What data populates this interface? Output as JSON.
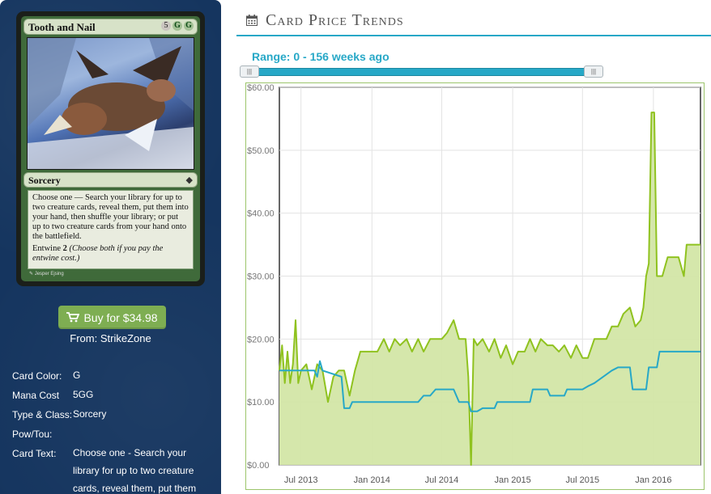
{
  "card": {
    "name": "Tooth and Nail",
    "cost_generic": "5",
    "cost_green": [
      "G",
      "G"
    ],
    "type_line": "Sorcery",
    "rules_text": "Choose one — Search your library for up to two creature cards, reveal them, put them into your hand, then shuffle your library; or put up to two creature cards from your hand onto the battlefield.",
    "entwine_text": "Entwine",
    "entwine_cost": "2",
    "entwine_reminder": "(Choose both if you pay the entwine cost.)",
    "artist": "Jesper Ejsing"
  },
  "buy": {
    "label": "Buy for $34.98",
    "from": "From: StrikeZone",
    "icon": "cart-icon"
  },
  "details": [
    {
      "label": "Card Color:",
      "value": "G"
    },
    {
      "label": "Mana Cost",
      "value": "5GG"
    },
    {
      "label": "Type & Class:",
      "value": "Sorcery"
    },
    {
      "label": "Pow/Tou:",
      "value": ""
    },
    {
      "label": "Card Text:",
      "value": "Choose one - Search your library for up to two creature cards, reveal them, put them"
    }
  ],
  "section": {
    "title": "Card Price Trends",
    "icon": "calendar-icon"
  },
  "range": {
    "label": "Range: 0 - 156 weeks ago",
    "min": 0,
    "max": 156
  },
  "colors": {
    "accent": "#27a8c7",
    "green_series": "#8fc21f",
    "green_fill": "#d3e6a6",
    "blue_series": "#27a8c7",
    "button": "#7eae52",
    "sidebar": "#15355f"
  },
  "chart_data": {
    "type": "line",
    "ylabel": "",
    "xlabel": "",
    "ylim": [
      0,
      60
    ],
    "yticks": [
      0,
      10,
      20,
      30,
      40,
      50,
      60
    ],
    "ytick_labels": [
      "$0.00",
      "$10.00",
      "$20.00",
      "$30.00",
      "$40.00",
      "$50.00",
      "$60.00"
    ],
    "xlim": [
      "2013-05-06",
      "2016-05-02"
    ],
    "xticks": [
      "2013-07-01",
      "2014-01-01",
      "2014-07-01",
      "2015-01-01",
      "2015-07-01",
      "2016-01-01"
    ],
    "xtick_labels": [
      "Jul 2013",
      "Jan 2014",
      "Jul 2014",
      "Jan 2015",
      "Jul 2015",
      "Jan 2016"
    ],
    "grid": true,
    "series": [
      {
        "color": "#8fc21f",
        "filled": true,
        "points": [
          [
            "2013-05-06",
            15
          ],
          [
            "2013-05-13",
            19
          ],
          [
            "2013-05-20",
            13
          ],
          [
            "2013-05-27",
            18
          ],
          [
            "2013-06-03",
            13
          ],
          [
            "2013-06-10",
            16
          ],
          [
            "2013-06-17",
            23
          ],
          [
            "2013-06-24",
            13
          ],
          [
            "2013-07-01",
            15
          ],
          [
            "2013-07-15",
            16
          ],
          [
            "2013-07-29",
            12
          ],
          [
            "2013-08-12",
            16
          ],
          [
            "2013-08-26",
            15
          ],
          [
            "2013-09-09",
            10
          ],
          [
            "2013-09-23",
            14
          ],
          [
            "2013-10-07",
            15
          ],
          [
            "2013-10-21",
            15
          ],
          [
            "2013-11-04",
            11
          ],
          [
            "2013-11-18",
            15
          ],
          [
            "2013-12-02",
            18
          ],
          [
            "2013-12-16",
            18
          ],
          [
            "2014-01-01",
            18
          ],
          [
            "2014-01-15",
            18
          ],
          [
            "2014-02-01",
            20
          ],
          [
            "2014-02-15",
            18
          ],
          [
            "2014-03-01",
            20
          ],
          [
            "2014-03-15",
            19
          ],
          [
            "2014-04-01",
            20
          ],
          [
            "2014-04-15",
            18
          ],
          [
            "2014-05-01",
            20
          ],
          [
            "2014-05-15",
            18
          ],
          [
            "2014-06-01",
            20
          ],
          [
            "2014-06-15",
            20
          ],
          [
            "2014-07-01",
            20
          ],
          [
            "2014-07-15",
            21
          ],
          [
            "2014-08-01",
            23
          ],
          [
            "2014-08-15",
            20
          ],
          [
            "2014-09-01",
            20
          ],
          [
            "2014-09-08",
            14
          ],
          [
            "2014-09-15",
            0
          ],
          [
            "2014-09-22",
            20
          ],
          [
            "2014-10-01",
            19
          ],
          [
            "2014-10-15",
            20
          ],
          [
            "2014-11-01",
            18
          ],
          [
            "2014-11-15",
            20
          ],
          [
            "2014-12-01",
            17
          ],
          [
            "2014-12-15",
            19
          ],
          [
            "2015-01-01",
            16
          ],
          [
            "2015-01-15",
            18
          ],
          [
            "2015-02-01",
            18
          ],
          [
            "2015-02-15",
            20
          ],
          [
            "2015-03-01",
            18
          ],
          [
            "2015-03-15",
            20
          ],
          [
            "2015-04-01",
            19
          ],
          [
            "2015-04-15",
            19
          ],
          [
            "2015-05-01",
            18
          ],
          [
            "2015-05-15",
            19
          ],
          [
            "2015-06-01",
            17
          ],
          [
            "2015-06-15",
            19
          ],
          [
            "2015-07-01",
            17
          ],
          [
            "2015-07-15",
            17
          ],
          [
            "2015-08-01",
            20
          ],
          [
            "2015-08-15",
            20
          ],
          [
            "2015-09-01",
            20
          ],
          [
            "2015-09-15",
            22
          ],
          [
            "2015-10-01",
            22
          ],
          [
            "2015-10-15",
            24
          ],
          [
            "2015-11-01",
            25
          ],
          [
            "2015-11-15",
            22
          ],
          [
            "2015-11-29",
            23
          ],
          [
            "2015-12-06",
            25
          ],
          [
            "2015-12-13",
            30
          ],
          [
            "2015-12-20",
            32
          ],
          [
            "2015-12-27",
            56
          ],
          [
            "2016-01-03",
            56
          ],
          [
            "2016-01-10",
            30
          ],
          [
            "2016-01-24",
            30
          ],
          [
            "2016-02-07",
            33
          ],
          [
            "2016-02-21",
            33
          ],
          [
            "2016-03-06",
            33
          ],
          [
            "2016-03-20",
            30
          ],
          [
            "2016-03-27",
            35
          ],
          [
            "2016-04-10",
            35
          ],
          [
            "2016-05-02",
            35
          ]
        ]
      },
      {
        "color": "#27a8c7",
        "filled": false,
        "points": [
          [
            "2013-05-06",
            15
          ],
          [
            "2013-08-05",
            15
          ],
          [
            "2013-08-12",
            14
          ],
          [
            "2013-08-19",
            16.5
          ],
          [
            "2013-08-26",
            15
          ],
          [
            "2013-10-14",
            14
          ],
          [
            "2013-10-21",
            9
          ],
          [
            "2013-11-04",
            9
          ],
          [
            "2013-11-11",
            10
          ],
          [
            "2014-05-01",
            10
          ],
          [
            "2014-05-15",
            11
          ],
          [
            "2014-06-01",
            11
          ],
          [
            "2014-06-15",
            12
          ],
          [
            "2014-08-01",
            12
          ],
          [
            "2014-08-15",
            10
          ],
          [
            "2014-09-08",
            10
          ],
          [
            "2014-09-15",
            8.5
          ],
          [
            "2014-10-01",
            8.5
          ],
          [
            "2014-10-15",
            9
          ],
          [
            "2014-11-15",
            9
          ],
          [
            "2014-11-22",
            10
          ],
          [
            "2015-02-15",
            10
          ],
          [
            "2015-02-22",
            12
          ],
          [
            "2015-04-01",
            12
          ],
          [
            "2015-04-08",
            11
          ],
          [
            "2015-05-15",
            11
          ],
          [
            "2015-05-22",
            12
          ],
          [
            "2015-07-01",
            12
          ],
          [
            "2015-07-15",
            12.5
          ],
          [
            "2015-08-01",
            13
          ],
          [
            "2015-09-15",
            15
          ],
          [
            "2015-10-01",
            15.5
          ],
          [
            "2015-11-01",
            15.5
          ],
          [
            "2015-11-08",
            12
          ],
          [
            "2015-12-13",
            12
          ],
          [
            "2015-12-20",
            15.5
          ],
          [
            "2016-01-10",
            15.5
          ],
          [
            "2016-01-17",
            18
          ],
          [
            "2016-05-02",
            18
          ]
        ]
      }
    ]
  }
}
